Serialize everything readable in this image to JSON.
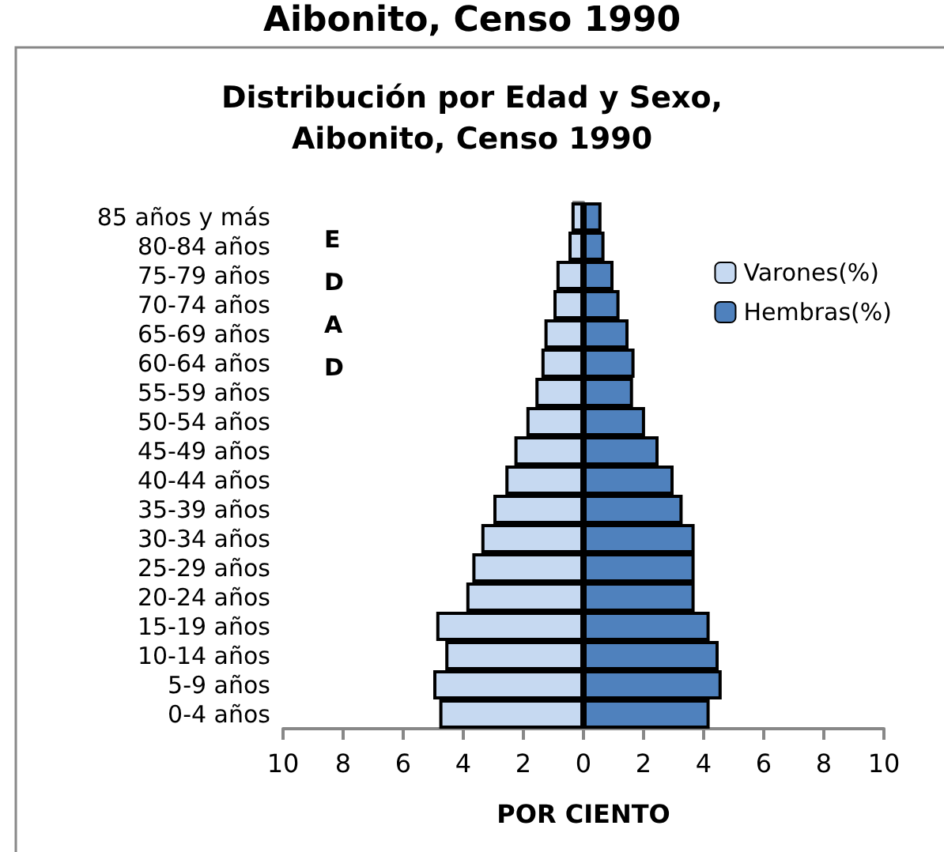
{
  "chart_data": {
    "type": "bar",
    "orientation": "horizontal",
    "stacked": true,
    "title": "Distribución por Edad y Sexo,\nAibonito, Censo 1990",
    "annotations": [
      "Aibonito, Censo 1990"
    ],
    "xlabel": "POR CIENTO",
    "ylabel": "EDAD",
    "categories": [
      "85 años y más",
      "80-84 años",
      "75-79 años",
      "70-74 años",
      "65-69 años",
      "60-64 años",
      "55-59 años",
      "50-54 años",
      "45-49 años",
      "40-44 años",
      "35-39 años",
      "30-34 años",
      "25-29 años",
      "20-24 años",
      "15-19 años",
      "10-14 años",
      "5-9 años",
      "0-4 años"
    ],
    "series": [
      {
        "name": "Varones(%)",
        "color": "#c6d9f1",
        "values": [
          -0.4,
          -0.5,
          -0.9,
          -1.0,
          -1.3,
          -1.4,
          -1.6,
          -1.9,
          -2.3,
          -2.6,
          -3.0,
          -3.4,
          -3.7,
          -3.9,
          -4.9,
          -4.6,
          -5.0,
          -4.8
        ]
      },
      {
        "name": "Hembras(%)",
        "color": "#4f81bd",
        "values": [
          0.6,
          0.7,
          1.0,
          1.2,
          1.5,
          1.7,
          1.65,
          2.05,
          2.5,
          3.0,
          3.3,
          3.7,
          3.7,
          3.7,
          4.2,
          4.5,
          4.6,
          4.2
        ]
      }
    ],
    "xlim": [
      -10,
      10
    ],
    "xticks": [
      {
        "value": -10,
        "label": "10"
      },
      {
        "value": -8,
        "label": "8"
      },
      {
        "value": -6,
        "label": "6"
      },
      {
        "value": -4,
        "label": "4"
      },
      {
        "value": -2,
        "label": "2"
      },
      0,
      2,
      4,
      6,
      8,
      10
    ],
    "legend": "right"
  }
}
